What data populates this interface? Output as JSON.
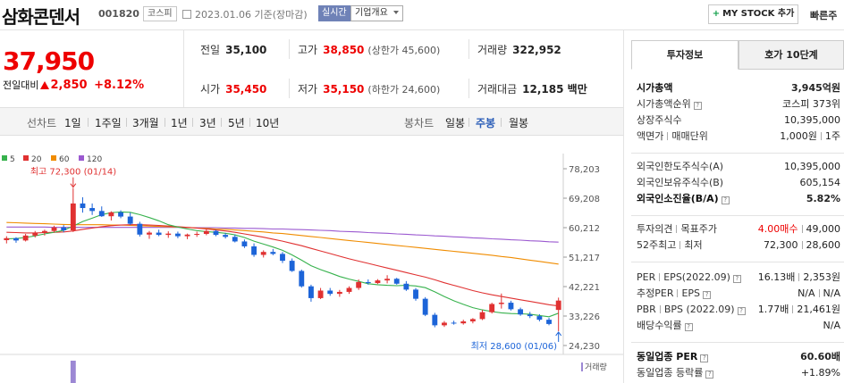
{
  "header": {
    "title": "삼화콘덴서",
    "code": "001820",
    "market": "코스피",
    "date": "2023.01.06",
    "date_suffix": "기준(장마감)",
    "realtime": "실시간",
    "company_select": "기업개요",
    "mystock_label": "MY STOCK 추가",
    "fast_label": "빠른주"
  },
  "price": {
    "current": "37,950",
    "diff_label": "전일대비",
    "diff_value": "2,850",
    "diff_pct": "+8.12%"
  },
  "quote": {
    "prev_label": "전일",
    "prev": "35,100",
    "high_label": "고가",
    "high": "38,850",
    "high_limit": "(상한가 45,600)",
    "volume_label": "거래량",
    "volume": "322,952",
    "open_label": "시가",
    "open": "35,450",
    "low_label": "저가",
    "low": "35,150",
    "low_limit": "(하한가 24,600)",
    "amount_label": "거래대금",
    "amount": "12,185 백만"
  },
  "tabs": {
    "line_label": "선차트",
    "line_items": [
      "1일",
      "1주일",
      "3개월",
      "1년",
      "3년",
      "5년",
      "10년"
    ],
    "candle_label": "봉차트",
    "candle_items": [
      "일봉",
      "주봉",
      "월봉"
    ],
    "active_candle": "주봉"
  },
  "chart_data": {
    "type": "candlestick",
    "legend": [
      {
        "name": "5",
        "color": "#37b24d"
      },
      {
        "name": "20",
        "color": "#e03131"
      },
      {
        "name": "60",
        "color": "#f08c00"
      },
      {
        "name": "120",
        "color": "#9b59d0"
      }
    ],
    "y_ticks": [
      "78,203",
      "69,208",
      "60,212",
      "51,217",
      "42,221",
      "33,226",
      "24,230"
    ],
    "ylim": [
      24230,
      78203
    ],
    "volume_label": "거래량",
    "high_annotation": "최고 72,300 (01/14)",
    "low_annotation": "최저 28,600 (01/06)",
    "candles": [
      [
        56400,
        57600,
        55400,
        57000
      ],
      [
        57000,
        57300,
        55600,
        56300
      ],
      [
        56300,
        58300,
        56000,
        57800
      ],
      [
        57800,
        59200,
        57200,
        58600
      ],
      [
        58600,
        59600,
        57800,
        59200
      ],
      [
        59200,
        60800,
        58700,
        60300
      ],
      [
        60300,
        61000,
        58800,
        59400
      ],
      [
        59400,
        72300,
        58900,
        67600
      ],
      [
        67600,
        69500,
        64800,
        66200
      ],
      [
        66200,
        67600,
        64100,
        65300
      ],
      [
        65300,
        66700,
        63500,
        63700
      ],
      [
        63700,
        65200,
        62400,
        64900
      ],
      [
        64900,
        65500,
        63100,
        63600
      ],
      [
        63600,
        64800,
        61000,
        61400
      ],
      [
        61400,
        62000,
        57500,
        58100
      ],
      [
        58100,
        59200,
        56800,
        58700
      ],
      [
        58700,
        59600,
        57600,
        58000
      ],
      [
        58000,
        59100,
        57100,
        58400
      ],
      [
        58400,
        59000,
        57000,
        57600
      ],
      [
        57600,
        58400,
        56700,
        58100
      ],
      [
        58100,
        59000,
        57400,
        58300
      ],
      [
        58300,
        59700,
        57900,
        59200
      ],
      [
        59200,
        59600,
        57600,
        58000
      ],
      [
        58000,
        58600,
        56900,
        57400
      ],
      [
        57400,
        58100,
        55700,
        56000
      ],
      [
        56000,
        56600,
        54000,
        54500
      ],
      [
        54500,
        55400,
        51300,
        51900
      ],
      [
        51900,
        53300,
        51100,
        52800
      ],
      [
        52800,
        53700,
        51800,
        52200
      ],
      [
        52200,
        52800,
        49400,
        50100
      ],
      [
        50100,
        50800,
        46700,
        47000
      ],
      [
        47000,
        47400,
        41900,
        42300
      ],
      [
        42300,
        42800,
        37600,
        38700
      ],
      [
        38700,
        41800,
        38400,
        41000
      ],
      [
        41000,
        41800,
        39400,
        40000
      ],
      [
        40000,
        41200,
        39100,
        40600
      ],
      [
        40600,
        42300,
        40000,
        41800
      ],
      [
        41800,
        44400,
        41200,
        43600
      ],
      [
        43600,
        44400,
        42800,
        43300
      ],
      [
        43300,
        44500,
        43000,
        44100
      ],
      [
        44100,
        45700,
        43200,
        44600
      ],
      [
        44600,
        44900,
        42800,
        43100
      ],
      [
        43100,
        43900,
        40900,
        41300
      ],
      [
        41300,
        41800,
        37900,
        38500
      ],
      [
        38500,
        39000,
        33200,
        33600
      ],
      [
        33600,
        34200,
        29800,
        30400
      ],
      [
        30400,
        31700,
        29900,
        31200
      ],
      [
        31200,
        31800,
        30600,
        31000
      ],
      [
        31000,
        32100,
        30600,
        31600
      ],
      [
        31600,
        32600,
        31000,
        32300
      ],
      [
        32300,
        35100,
        32000,
        34400
      ],
      [
        34400,
        37300,
        34000,
        36900
      ],
      [
        36900,
        40100,
        35500,
        37300
      ],
      [
        37300,
        37900,
        34900,
        35300
      ],
      [
        35300,
        35800,
        33300,
        33700
      ],
      [
        33700,
        34500,
        32600,
        33200
      ],
      [
        33200,
        33800,
        31600,
        32100
      ],
      [
        32100,
        32700,
        30400,
        30800
      ],
      [
        35100,
        38850,
        28600,
        37950
      ]
    ],
    "ma5": [
      56800,
      56900,
      57200,
      57700,
      58300,
      58800,
      59400,
      60700,
      62100,
      63100,
      64200,
      64800,
      65000,
      64900,
      64200,
      63300,
      62300,
      61100,
      60400,
      59800,
      59300,
      59000,
      58800,
      58500,
      58000,
      57200,
      56100,
      55200,
      54300,
      53300,
      51900,
      50300,
      48600,
      47400,
      46400,
      45300,
      44500,
      43800,
      43100,
      42800,
      42600,
      42500,
      42600,
      42400,
      41900,
      40600,
      39200,
      37900,
      36800,
      35800,
      35100,
      34600,
      34200,
      34000,
      33900,
      33800,
      33400,
      33000,
      34100
    ],
    "ma20": [
      58800,
      58700,
      58600,
      58600,
      58700,
      58800,
      58900,
      59200,
      59700,
      60100,
      60500,
      60800,
      61000,
      61100,
      61100,
      61000,
      60900,
      60700,
      60500,
      60300,
      60100,
      59800,
      59500,
      59200,
      58800,
      58300,
      57800,
      57300,
      56700,
      56100,
      55400,
      54700,
      53900,
      53100,
      52300,
      51500,
      50700,
      50000,
      49300,
      48600,
      47900,
      47200,
      46500,
      45800,
      45100,
      44300,
      43400,
      42600,
      41800,
      41000,
      40300,
      39700,
      39200,
      38700,
      38200,
      37700,
      37200,
      36700,
      36300
    ],
    "ma60": [
      61800,
      61700,
      61600,
      61500,
      61400,
      61300,
      61200,
      61100,
      61100,
      61100,
      61100,
      61000,
      61000,
      60900,
      60800,
      60700,
      60600,
      60500,
      60400,
      60300,
      60100,
      60000,
      59800,
      59700,
      59500,
      59300,
      59100,
      58900,
      58600,
      58400,
      58100,
      57800,
      57500,
      57200,
      56900,
      56600,
      56300,
      56000,
      55700,
      55400,
      55100,
      54800,
      54500,
      54200,
      53900,
      53600,
      53300,
      53000,
      52700,
      52400,
      52100,
      51800,
      51400,
      51100,
      50700,
      50300,
      49900,
      49500,
      49100
    ],
    "ma120": [
      60400,
      60400,
      60400,
      60400,
      60400,
      60300,
      60300,
      60300,
      60300,
      60300,
      60300,
      60300,
      60300,
      60300,
      60300,
      60300,
      60300,
      60300,
      60300,
      60200,
      60200,
      60200,
      60200,
      60100,
      60100,
      60000,
      60000,
      59900,
      59800,
      59800,
      59700,
      59600,
      59500,
      59400,
      59300,
      59100,
      59000,
      58900,
      58700,
      58600,
      58500,
      58300,
      58200,
      58000,
      57900,
      57700,
      57600,
      57400,
      57300,
      57100,
      57000,
      56800,
      56700,
      56500,
      56400,
      56200,
      56100,
      55900,
      55800
    ],
    "volume_spike_index": 7
  },
  "side": {
    "tab_invest": "투자정보",
    "tab_hoga": "호가 10단계",
    "market_cap_label": "시가총액",
    "market_cap": "3,945억원",
    "cap_rank_label": "시가총액순위",
    "cap_rank": "코스피 373위",
    "shares_label": "상장주식수",
    "shares": "10,395,000",
    "par_label": "액면가",
    "unit_label": "매매단위",
    "par_unit": "1,000원",
    "trade_unit": "1주",
    "foreign_limit_label": "외국인한도주식수(A)",
    "foreign_limit": "10,395,000",
    "foreign_hold_label": "외국인보유주식수(B)",
    "foreign_hold": "605,154",
    "foreign_rate_label": "외국인소진율(B/A)",
    "foreign_rate": "5.82%",
    "opinion_label": "투자의견",
    "target_label": "목표주가",
    "opinion": "4.00매수",
    "target": "49,000",
    "w52_high_label": "52주최고",
    "w52_low_label": "최저",
    "w52_high": "72,300",
    "w52_low": "28,600",
    "per_label": "PER",
    "eps_label": "EPS(2022.09)",
    "per": "16.13배",
    "eps": "2,353원",
    "est_per_label": "추정PER",
    "est_eps_label": "EPS",
    "est_per": "N/A",
    "est_eps": "N/A",
    "pbr_label": "PBR",
    "bps_label": "BPS (2022.09)",
    "pbr": "1.77배",
    "bps": "21,461원",
    "div_label": "배당수익률",
    "div": "N/A",
    "sector_per_label": "동일업종 PER",
    "sector_per": "60.60배",
    "sector_chg_label": "동일업종 등락률",
    "sector_chg": "+1.89%"
  }
}
